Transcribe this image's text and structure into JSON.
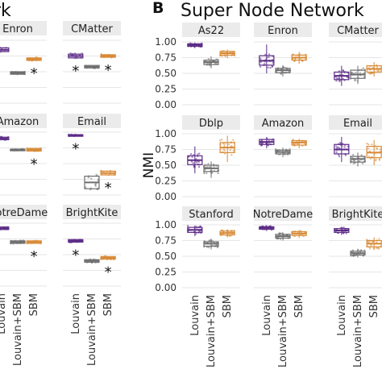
{
  "figure": {
    "left_title_fragment": "rk",
    "panel_letter": "B",
    "panel_title": "Super Node Network"
  },
  "colors": {
    "louvain": "#5b2a86",
    "louvain_sbm": "#6e6e6e",
    "sbm": "#d88a36",
    "strip_bg": "#ebebeb",
    "grid": "#e6e6e6",
    "pink": "#c24d7a"
  },
  "chart_data": [
    {
      "type": "boxplot",
      "title": "Super Node Network",
      "ylabel": "NMI",
      "categories": [
        "Louvain",
        "Louvain+SBM",
        "SBM"
      ],
      "y_ticks": [
        "1.00",
        "0.75",
        "0.50",
        "0.25",
        "0.00"
      ],
      "ylim": [
        0,
        1
      ],
      "grid": true,
      "facets": [
        {
          "name": "As22",
          "box": [
            {
              "median": 0.95,
              "q1": 0.93,
              "q3": 0.97,
              "lo": 0.9,
              "hi": 0.99
            },
            {
              "median": 0.68,
              "q1": 0.64,
              "q3": 0.71,
              "lo": 0.58,
              "hi": 0.77
            },
            {
              "median": 0.82,
              "q1": 0.79,
              "q3": 0.85,
              "lo": 0.74,
              "hi": 0.88
            }
          ]
        },
        {
          "name": "Enron",
          "box": [
            {
              "median": 0.7,
              "q1": 0.63,
              "q3": 0.78,
              "lo": 0.5,
              "hi": 0.96
            },
            {
              "median": 0.55,
              "q1": 0.51,
              "q3": 0.58,
              "lo": 0.45,
              "hi": 0.63
            },
            {
              "median": 0.75,
              "q1": 0.71,
              "q3": 0.79,
              "lo": 0.65,
              "hi": 0.84
            }
          ]
        },
        {
          "name": "CMatter",
          "box": [
            {
              "median": 0.46,
              "q1": 0.4,
              "q3": 0.52,
              "lo": 0.3,
              "hi": 0.62
            },
            {
              "median": 0.48,
              "q1": 0.42,
              "q3": 0.55,
              "lo": 0.33,
              "hi": 0.62
            },
            {
              "median": 0.57,
              "q1": 0.52,
              "q3": 0.62,
              "lo": 0.45,
              "hi": 0.68
            }
          ]
        },
        {
          "name": "Dblp",
          "box": [
            {
              "median": 0.58,
              "q1": 0.51,
              "q3": 0.65,
              "lo": 0.37,
              "hi": 0.8
            },
            {
              "median": 0.45,
              "q1": 0.4,
              "q3": 0.5,
              "lo": 0.3,
              "hi": 0.56
            },
            {
              "median": 0.78,
              "q1": 0.7,
              "q3": 0.86,
              "lo": 0.55,
              "hi": 0.97
            }
          ]
        },
        {
          "name": "Amazon",
          "box": [
            {
              "median": 0.87,
              "q1": 0.83,
              "q3": 0.91,
              "lo": 0.77,
              "hi": 0.95
            },
            {
              "median": 0.71,
              "q1": 0.68,
              "q3": 0.74,
              "lo": 0.63,
              "hi": 0.78
            },
            {
              "median": 0.86,
              "q1": 0.82,
              "q3": 0.89,
              "lo": 0.77,
              "hi": 0.92
            }
          ]
        },
        {
          "name": "Email",
          "box": [
            {
              "median": 0.75,
              "q1": 0.68,
              "q3": 0.83,
              "lo": 0.55,
              "hi": 0.95
            },
            {
              "median": 0.6,
              "q1": 0.55,
              "q3": 0.64,
              "lo": 0.48,
              "hi": 0.7
            },
            {
              "median": 0.7,
              "q1": 0.62,
              "q3": 0.8,
              "lo": 0.5,
              "hi": 0.9
            }
          ]
        },
        {
          "name": "Stanford",
          "box": [
            {
              "median": 0.92,
              "q1": 0.88,
              "q3": 0.96,
              "lo": 0.82,
              "hi": 0.99
            },
            {
              "median": 0.7,
              "q1": 0.66,
              "q3": 0.73,
              "lo": 0.61,
              "hi": 0.78
            },
            {
              "median": 0.87,
              "q1": 0.84,
              "q3": 0.9,
              "lo": 0.8,
              "hi": 0.93
            }
          ]
        },
        {
          "name": "NotreDame",
          "box": [
            {
              "median": 0.95,
              "q1": 0.93,
              "q3": 0.97,
              "lo": 0.9,
              "hi": 0.99
            },
            {
              "median": 0.82,
              "q1": 0.79,
              "q3": 0.85,
              "lo": 0.75,
              "hi": 0.88
            },
            {
              "median": 0.86,
              "q1": 0.83,
              "q3": 0.89,
              "lo": 0.79,
              "hi": 0.92
            }
          ]
        },
        {
          "name": "BrightKite",
          "box": [
            {
              "median": 0.91,
              "q1": 0.88,
              "q3": 0.94,
              "lo": 0.84,
              "hi": 0.97
            },
            {
              "median": 0.55,
              "q1": 0.52,
              "q3": 0.58,
              "lo": 0.48,
              "hi": 0.62
            },
            {
              "median": 0.7,
              "q1": 0.65,
              "q3": 0.75,
              "lo": 0.6,
              "hi": 0.8
            }
          ]
        }
      ]
    },
    {
      "type": "boxplot",
      "title": "",
      "categories": [
        "Louvain",
        "Louvain+SBM",
        "SBM"
      ],
      "annotation": "*",
      "facets": [
        {
          "name": "Enron",
          "box": [
            {
              "median": 0.85,
              "q1": 0.82,
              "q3": 0.88
            },
            {
              "median": 0.48,
              "q1": 0.46,
              "q3": 0.5
            },
            {
              "median": 0.7,
              "q1": 0.68,
              "q3": 0.72
            }
          ],
          "stars": [
            false,
            false,
            true
          ]
        },
        {
          "name": "CMatter",
          "box": [
            {
              "median": 0.75,
              "q1": 0.72,
              "q3": 0.78
            },
            {
              "median": 0.58,
              "q1": 0.56,
              "q3": 0.6
            },
            {
              "median": 0.75,
              "q1": 0.73,
              "q3": 0.77
            }
          ],
          "stars": [
            true,
            false,
            true
          ]
        },
        {
          "name": "Amazon",
          "box": [
            {
              "median": 0.9,
              "q1": 0.88,
              "q3": 0.92
            },
            {
              "median": 0.72,
              "q1": 0.71,
              "q3": 0.73
            },
            {
              "median": 0.72,
              "q1": 0.7,
              "q3": 0.74
            }
          ],
          "stars": [
            false,
            false,
            true
          ]
        },
        {
          "name": "Email",
          "box": [
            {
              "median": 0.95,
              "q1": 0.94,
              "q3": 0.96
            },
            {
              "median": 0.2,
              "q1": 0.1,
              "q3": 0.3
            },
            {
              "median": 0.35,
              "q1": 0.32,
              "q3": 0.38
            }
          ],
          "stars": [
            true,
            false,
            true
          ]
        },
        {
          "name": "NotreDame",
          "box": [
            {
              "median": 0.92,
              "q1": 0.9,
              "q3": 0.94
            },
            {
              "median": 0.7,
              "q1": 0.68,
              "q3": 0.72
            },
            {
              "median": 0.7,
              "q1": 0.68,
              "q3": 0.72
            }
          ],
          "stars": [
            false,
            false,
            true
          ]
        },
        {
          "name": "BrightKite",
          "box": [
            {
              "median": 0.72,
              "q1": 0.7,
              "q3": 0.74
            },
            {
              "median": 0.4,
              "q1": 0.38,
              "q3": 0.42
            },
            {
              "median": 0.45,
              "q1": 0.43,
              "q3": 0.47
            }
          ],
          "stars": [
            true,
            false,
            true
          ]
        }
      ]
    }
  ]
}
